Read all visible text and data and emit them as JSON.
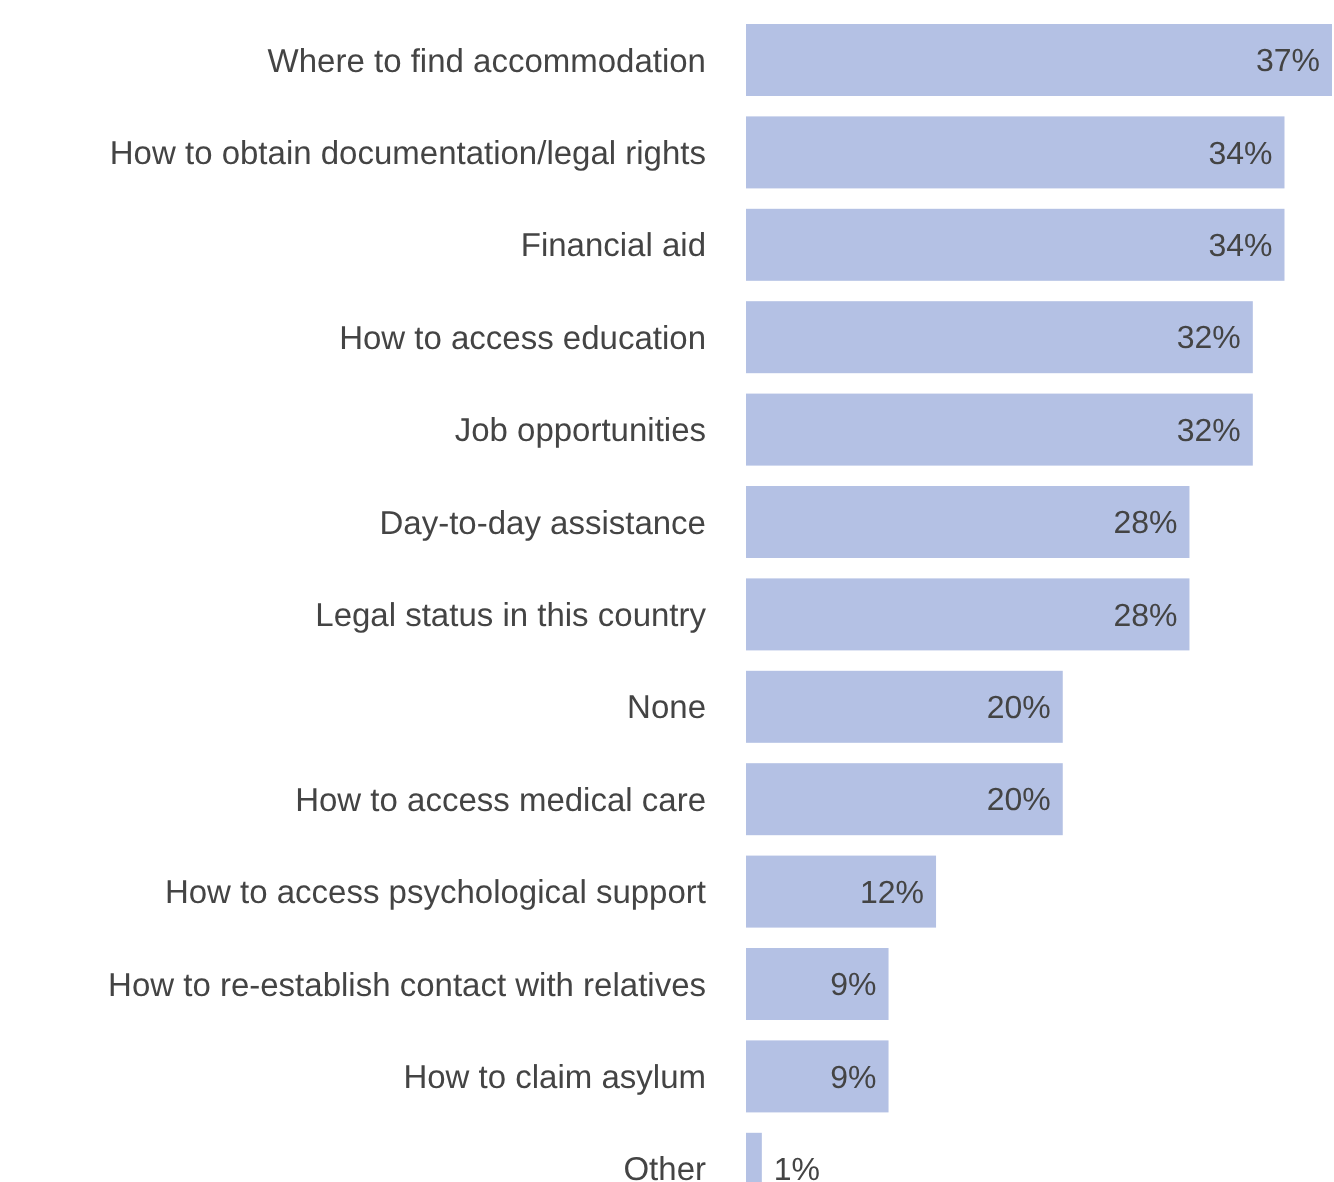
{
  "chart_data": {
    "type": "bar",
    "orientation": "horizontal",
    "data_labels": true,
    "color": "#b4c1e4",
    "categories": [
      "Where to find accommodation",
      "How to obtain documentation/legal rights",
      "Financial aid",
      "How to access education",
      "Job opportunities",
      "Day-to-day assistance",
      "Legal status in this country",
      "None",
      "How to access medical care",
      "How to access psychological support",
      "How to re-establish contact with relatives",
      "How to claim asylum",
      "Other"
    ],
    "values": [
      37,
      34,
      34,
      32,
      32,
      28,
      28,
      20,
      20,
      12,
      9,
      9,
      1
    ],
    "value_labels": [
      "37%",
      "34%",
      "34%",
      "32%",
      "32%",
      "28%",
      "28%",
      "20%",
      "20%",
      "12%",
      "9%",
      "9%",
      "1%"
    ]
  }
}
